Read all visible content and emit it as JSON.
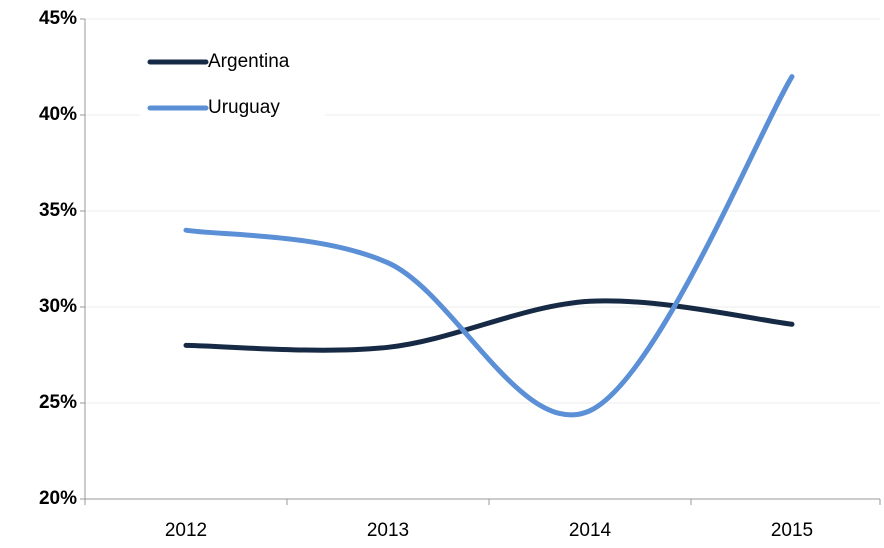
{
  "chart_data": {
    "type": "line",
    "categories": [
      "2012",
      "2013",
      "2014",
      "2015"
    ],
    "series": [
      {
        "name": "Argentina",
        "color": "#172a45",
        "values": [
          28.0,
          27.9,
          30.3,
          29.1
        ]
      },
      {
        "name": "Uruguay",
        "color": "#5b8fd6",
        "values": [
          34.0,
          32.3,
          24.6,
          42.0
        ]
      }
    ],
    "ylim": [
      20,
      45
    ],
    "yticks": [
      {
        "value": 20,
        "label": "20%"
      },
      {
        "value": 25,
        "label": "25%"
      },
      {
        "value": 30,
        "label": "30%"
      },
      {
        "value": 35,
        "label": "35%"
      },
      {
        "value": 40,
        "label": "40%"
      },
      {
        "value": 45,
        "label": "45%"
      }
    ],
    "grid": true,
    "smooth": true,
    "legend": "upper left"
  }
}
